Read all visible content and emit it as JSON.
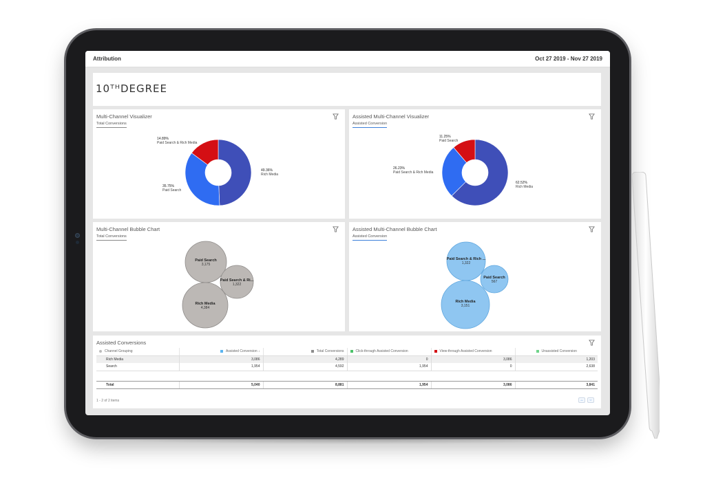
{
  "header": {
    "title": "Attribution",
    "date_range": "Oct 27 2019 - Nov 27 2019"
  },
  "logo": {
    "text": "10ᵀᴴDEGREE"
  },
  "colors": {
    "dark_blue": "#3f4fb8",
    "bright_blue": "#2f6cf2",
    "red": "#d40f14",
    "gray_bubble": "#bcb8b5",
    "light_blue_bubble": "#8fc6f1",
    "assisted_accent": "#3b7fd9"
  },
  "mc_visualizer": {
    "title": "Multi-Channel Visualizer",
    "subtitle": "Total Conversions",
    "slices": [
      {
        "pct": "49.36%",
        "label": "Rich Media",
        "value": 49.36,
        "color": "#3f4fb8"
      },
      {
        "pct": "35.75%",
        "label": "Paid Search",
        "value": 35.75,
        "color": "#2f6cf2"
      },
      {
        "pct": "14.89%",
        "label": "Paid Search & Rich Media",
        "value": 14.89,
        "color": "#d40f14"
      }
    ]
  },
  "amc_visualizer": {
    "title": "Assisted Multi-Channel Visualizer",
    "subtitle": "Assisted Conversion",
    "slices": [
      {
        "pct": "62.52%",
        "label": "Rich Media",
        "value": 62.52,
        "color": "#3f4fb8"
      },
      {
        "pct": "26.23%",
        "label": "Paid Search & Rich Media",
        "value": 26.23,
        "color": "#2f6cf2"
      },
      {
        "pct": "11.25%",
        "label": "Paid Search",
        "value": 11.25,
        "color": "#d40f14"
      }
    ]
  },
  "mc_bubble": {
    "title": "Multi-Channel Bubble Chart",
    "subtitle": "Total Conversions",
    "bubbles": [
      {
        "name": "Paid Search",
        "value": "3,175"
      },
      {
        "name": "Paid Search & Ri...",
        "value": "1,322"
      },
      {
        "name": "Rich Media",
        "value": "4,384"
      }
    ]
  },
  "amc_bubble": {
    "title": "Assisted Multi-Channel Bubble Chart",
    "subtitle": "Assisted Conversion",
    "bubbles": [
      {
        "name": "Paid Search & Rich ...",
        "value": "1,322"
      },
      {
        "name": "Paid Search",
        "value": "567"
      },
      {
        "name": "Rich Media",
        "value": "3,151"
      }
    ]
  },
  "table": {
    "title": "Assisted Conversions",
    "columns": [
      "Channel Grouping",
      "Assisted Conversion",
      "Total Conversions",
      "Click-through Assisted Conversion",
      "View-through Assisted Conversion",
      "Unassisted Conversion"
    ],
    "column_colors": [
      "#bbbbbb",
      "#5ab4f0",
      "#8c8c8c",
      "#4cc26a",
      "#d40f14",
      "#6fd48a"
    ],
    "sort_indicator": "↓",
    "rows": [
      [
        "Rich Media",
        "3,086",
        "4,289",
        "0",
        "3,086",
        "1,203"
      ],
      [
        "Search",
        "1,954",
        "4,592",
        "1,954",
        "0",
        "2,638"
      ]
    ],
    "total": [
      "Total",
      "5,040",
      "8,881",
      "1,954",
      "3,086",
      "3,841"
    ],
    "pager_text": "1 - 2 of 2 items"
  }
}
